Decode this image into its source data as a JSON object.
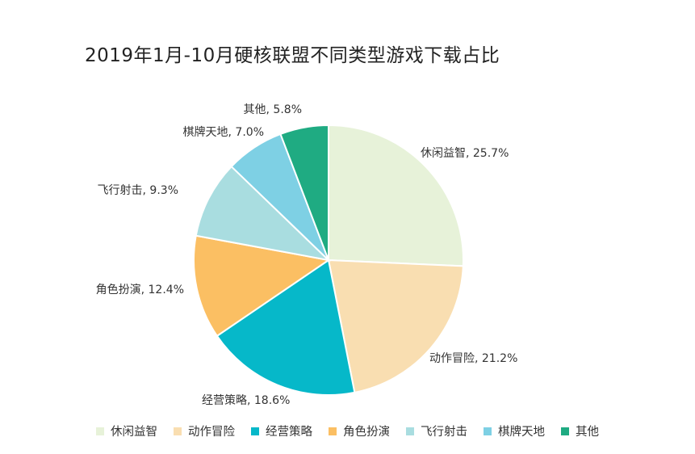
{
  "chart_data": {
    "type": "pie",
    "title": "2019年1月-10月硬核联盟不同类型游戏下载占比",
    "categories": [
      "休闲益智",
      "动作冒险",
      "经营策略",
      "角色扮演",
      "飞行射击",
      "棋牌天地",
      "其他"
    ],
    "values": [
      25.7,
      21.2,
      18.6,
      12.4,
      9.3,
      7.0,
      5.8
    ],
    "labels": [
      "休闲益智, 25.7%",
      "动作冒险, 21.2%",
      "经营策略, 18.6%",
      "角色扮演, 12.4%",
      "飞行射击, 9.3%",
      "棋牌天地, 7.0%",
      "其他, 5.8%"
    ],
    "colors": [
      "#E7F2D9",
      "#F9DEB1",
      "#06B8C9",
      "#FBBF63",
      "#A9DDE0",
      "#7ED0E4",
      "#1FAB82"
    ],
    "start_angle": "12 o'clock",
    "direction": "clockwise",
    "legend_position": "bottom"
  }
}
